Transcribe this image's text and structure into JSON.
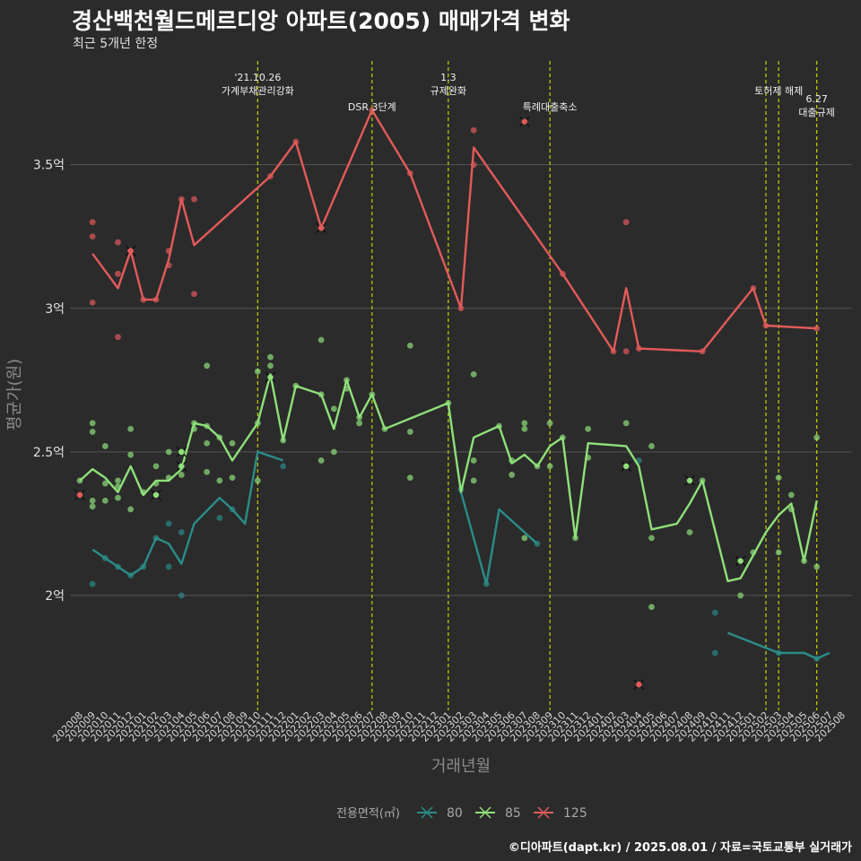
{
  "title": "경산백천월드메르디앙 아파트(2005) 매매가격 변화",
  "subtitle": "최근 5개년 한정",
  "credit": "©디아파트(dapt.kr) / 2025.08.01 / 자료=국토교통부 실거래가",
  "colors": {
    "background": "#2b2b2b",
    "grid": "#555555",
    "vline": "#c8d300",
    "s80": "#2a8c89",
    "s85": "#8fe07a",
    "s125": "#e35a5a"
  },
  "chart_data": {
    "type": "line",
    "title": "경산백천월드메르디앙 아파트(2005) 매매가격 변화",
    "subtitle": "최근 5개년 한정",
    "xlabel": "거래년월",
    "ylabel": "평균가(원)",
    "ylim": [
      1.6,
      3.88
    ],
    "yticks": [
      {
        "value": 2.0,
        "label": "2억"
      },
      {
        "value": 2.5,
        "label": "2.5억"
      },
      {
        "value": 3.0,
        "label": "3억"
      },
      {
        "value": 3.5,
        "label": "3.5억"
      }
    ],
    "categories": [
      "202008",
      "202009",
      "202010",
      "202011",
      "202012",
      "202101",
      "202102",
      "202103",
      "202104",
      "202105",
      "202106",
      "202107",
      "202108",
      "202109",
      "202110",
      "202111",
      "202112",
      "202201",
      "202202",
      "202203",
      "202204",
      "202205",
      "202206",
      "202207",
      "202208",
      "202209",
      "202210",
      "202211",
      "202212",
      "202301",
      "202302",
      "202303",
      "202304",
      "202305",
      "202306",
      "202307",
      "202308",
      "202309",
      "202310",
      "202311",
      "202312",
      "202401",
      "202402",
      "202403",
      "202404",
      "202405",
      "202406",
      "202407",
      "202408",
      "202409",
      "202410",
      "202411",
      "202412",
      "202501",
      "202502",
      "202503",
      "202504",
      "202505",
      "202506",
      "202507",
      "202508"
    ],
    "legend": {
      "title": "전용면적(㎡)",
      "position": "bottom",
      "items": [
        "80",
        "85",
        "125"
      ]
    },
    "series": [
      {
        "name": "80",
        "line": [
          [
            "202009",
            2.16
          ],
          [
            "202010",
            2.13
          ],
          [
            "202011",
            2.1
          ],
          [
            "202012",
            2.07
          ],
          [
            "202101",
            2.1
          ],
          [
            "202102",
            2.2
          ],
          [
            "202103",
            2.18
          ],
          [
            "202104",
            2.11
          ],
          [
            "202105",
            2.25
          ],
          [
            "202107",
            2.34
          ],
          [
            "202108",
            2.3
          ],
          [
            "202109",
            2.25
          ],
          [
            "202110",
            2.5
          ],
          [
            "202112",
            2.47
          ],
          [
            "202302",
            2.36
          ],
          [
            "202304",
            2.04
          ],
          [
            "202305",
            2.3
          ],
          [
            "202307",
            2.22
          ],
          [
            "202308",
            2.18
          ],
          [
            "202411",
            1.87
          ],
          [
            "202503",
            1.8
          ],
          [
            "202505",
            1.8
          ],
          [
            "202506",
            1.78
          ],
          [
            "202507",
            1.8
          ]
        ],
        "points": [
          [
            "202009",
            2.04
          ],
          [
            "202010",
            2.13
          ],
          [
            "202011",
            2.1
          ],
          [
            "202012",
            2.07
          ],
          [
            "202101",
            2.1
          ],
          [
            "202102",
            2.2
          ],
          [
            "202103",
            2.25
          ],
          [
            "202103",
            2.1
          ],
          [
            "202104",
            2.22
          ],
          [
            "202104",
            2.0
          ],
          [
            "202107",
            2.27
          ],
          [
            "202108",
            2.3
          ],
          [
            "202112",
            2.45
          ],
          [
            "202302",
            2.37
          ],
          [
            "202304",
            2.04
          ],
          [
            "202308",
            2.18
          ],
          [
            "202404",
            2.47
          ],
          [
            "202410",
            1.94
          ],
          [
            "202410",
            1.8
          ],
          [
            "202503",
            1.8
          ],
          [
            "202506",
            1.78
          ]
        ],
        "cancelled": []
      },
      {
        "name": "85",
        "line": [
          [
            "202008",
            2.4
          ],
          [
            "202009",
            2.44
          ],
          [
            "202010",
            2.41
          ],
          [
            "202011",
            2.36
          ],
          [
            "202012",
            2.45
          ],
          [
            "202101",
            2.35
          ],
          [
            "202102",
            2.4
          ],
          [
            "202103",
            2.4
          ],
          [
            "202104",
            2.44
          ],
          [
            "202105",
            2.6
          ],
          [
            "202106",
            2.59
          ],
          [
            "202107",
            2.55
          ],
          [
            "202108",
            2.47
          ],
          [
            "202110",
            2.6
          ],
          [
            "202111",
            2.77
          ],
          [
            "202112",
            2.54
          ],
          [
            "202201",
            2.73
          ],
          [
            "202203",
            2.7
          ],
          [
            "202204",
            2.58
          ],
          [
            "202205",
            2.75
          ],
          [
            "202206",
            2.62
          ],
          [
            "202207",
            2.7
          ],
          [
            "202208",
            2.58
          ],
          [
            "202301",
            2.67
          ],
          [
            "202302",
            2.36
          ],
          [
            "202303",
            2.55
          ],
          [
            "202305",
            2.59
          ],
          [
            "202306",
            2.46
          ],
          [
            "202307",
            2.49
          ],
          [
            "202308",
            2.45
          ],
          [
            "202309",
            2.52
          ],
          [
            "202310",
            2.55
          ],
          [
            "202311",
            2.2
          ],
          [
            "202312",
            2.53
          ],
          [
            "202403",
            2.52
          ],
          [
            "202404",
            2.45
          ],
          [
            "202405",
            2.23
          ],
          [
            "202407",
            2.25
          ],
          [
            "202408",
            2.32
          ],
          [
            "202409",
            2.4
          ],
          [
            "202411",
            2.05
          ],
          [
            "202412",
            2.06
          ],
          [
            "202502",
            2.22
          ],
          [
            "202503",
            2.28
          ],
          [
            "202504",
            2.32
          ],
          [
            "202505",
            2.12
          ],
          [
            "202506",
            2.33
          ]
        ],
        "points": [
          [
            "202008",
            2.4
          ],
          [
            "202009",
            2.6
          ],
          [
            "202009",
            2.57
          ],
          [
            "202009",
            2.33
          ],
          [
            "202009",
            2.31
          ],
          [
            "202010",
            2.52
          ],
          [
            "202010",
            2.39
          ],
          [
            "202010",
            2.33
          ],
          [
            "202011",
            2.4
          ],
          [
            "202011",
            2.38
          ],
          [
            "202011",
            2.34
          ],
          [
            "202012",
            2.58
          ],
          [
            "202012",
            2.49
          ],
          [
            "202012",
            2.3
          ],
          [
            "202101",
            2.36
          ],
          [
            "202102",
            2.45
          ],
          [
            "202102",
            2.39
          ],
          [
            "202103",
            2.5
          ],
          [
            "202103",
            2.41
          ],
          [
            "202104",
            2.5
          ],
          [
            "202104",
            2.45
          ],
          [
            "202104",
            2.42
          ],
          [
            "202105",
            2.6
          ],
          [
            "202105",
            2.58
          ],
          [
            "202106",
            2.8
          ],
          [
            "202106",
            2.59
          ],
          [
            "202106",
            2.53
          ],
          [
            "202106",
            2.43
          ],
          [
            "202107",
            2.55
          ],
          [
            "202107",
            2.4
          ],
          [
            "202108",
            2.53
          ],
          [
            "202108",
            2.41
          ],
          [
            "202110",
            2.78
          ],
          [
            "202110",
            2.6
          ],
          [
            "202110",
            2.4
          ],
          [
            "202111",
            2.83
          ],
          [
            "202111",
            2.8
          ],
          [
            "202112",
            2.54
          ],
          [
            "202201",
            2.73
          ],
          [
            "202203",
            2.89
          ],
          [
            "202203",
            2.7
          ],
          [
            "202203",
            2.47
          ],
          [
            "202204",
            2.65
          ],
          [
            "202204",
            2.5
          ],
          [
            "202205",
            2.75
          ],
          [
            "202205",
            2.72
          ],
          [
            "202206",
            2.62
          ],
          [
            "202206",
            2.6
          ],
          [
            "202207",
            2.7
          ],
          [
            "202208",
            2.58
          ],
          [
            "202210",
            2.87
          ],
          [
            "202210",
            2.57
          ],
          [
            "202210",
            2.41
          ],
          [
            "202301",
            2.67
          ],
          [
            "202303",
            2.77
          ],
          [
            "202303",
            2.47
          ],
          [
            "202303",
            2.4
          ],
          [
            "202305",
            2.59
          ],
          [
            "202306",
            2.47
          ],
          [
            "202306",
            2.42
          ],
          [
            "202307",
            2.6
          ],
          [
            "202307",
            2.58
          ],
          [
            "202307",
            2.2
          ],
          [
            "202308",
            2.45
          ],
          [
            "202309",
            2.6
          ],
          [
            "202309",
            2.45
          ],
          [
            "202310",
            2.55
          ],
          [
            "202311",
            2.2
          ],
          [
            "202312",
            2.58
          ],
          [
            "202312",
            2.48
          ],
          [
            "202403",
            2.6
          ],
          [
            "202405",
            2.52
          ],
          [
            "202405",
            2.2
          ],
          [
            "202405",
            1.96
          ],
          [
            "202408",
            2.22
          ],
          [
            "202409",
            2.4
          ],
          [
            "202412",
            2.0
          ],
          [
            "202501",
            2.15
          ],
          [
            "202503",
            2.41
          ],
          [
            "202503",
            2.15
          ],
          [
            "202504",
            2.35
          ],
          [
            "202504",
            2.3
          ],
          [
            "202505",
            2.12
          ],
          [
            "202506",
            2.55
          ],
          [
            "202506",
            2.1
          ]
        ],
        "cancelled": [
          [
            "202104",
            2.5
          ],
          [
            "202104",
            2.45
          ],
          [
            "202102",
            2.35
          ],
          [
            "202111",
            2.76
          ],
          [
            "202403",
            2.45
          ],
          [
            "202408",
            2.4
          ],
          [
            "202412",
            2.12
          ]
        ]
      },
      {
        "name": "125",
        "line": [
          [
            "202009",
            3.19
          ],
          [
            "202011",
            3.07
          ],
          [
            "202012",
            3.2
          ],
          [
            "202101",
            3.03
          ],
          [
            "202102",
            3.03
          ],
          [
            "202103",
            3.17
          ],
          [
            "202104",
            3.38
          ],
          [
            "202105",
            3.22
          ],
          [
            "202111",
            3.46
          ],
          [
            "202201",
            3.58
          ],
          [
            "202203",
            3.28
          ],
          [
            "202207",
            3.69
          ],
          [
            "202210",
            3.47
          ],
          [
            "202302",
            3.0
          ],
          [
            "202303",
            3.56
          ],
          [
            "202310",
            3.12
          ],
          [
            "202402",
            2.85
          ],
          [
            "202403",
            3.07
          ],
          [
            "202404",
            2.86
          ],
          [
            "202409",
            2.85
          ],
          [
            "202501",
            3.07
          ],
          [
            "202502",
            2.94
          ],
          [
            "202506",
            2.93
          ]
        ],
        "points": [
          [
            "202009",
            3.3
          ],
          [
            "202009",
            3.25
          ],
          [
            "202009",
            3.02
          ],
          [
            "202011",
            3.23
          ],
          [
            "202011",
            3.12
          ],
          [
            "202011",
            2.9
          ],
          [
            "202012",
            3.2
          ],
          [
            "202101",
            3.03
          ],
          [
            "202102",
            3.03
          ],
          [
            "202103",
            3.2
          ],
          [
            "202103",
            3.15
          ],
          [
            "202104",
            3.38
          ],
          [
            "202105",
            3.38
          ],
          [
            "202105",
            3.05
          ],
          [
            "202111",
            3.46
          ],
          [
            "202201",
            3.58
          ],
          [
            "202203",
            3.28
          ],
          [
            "202207",
            3.69
          ],
          [
            "202210",
            3.47
          ],
          [
            "202302",
            3.0
          ],
          [
            "202303",
            3.62
          ],
          [
            "202303",
            3.5
          ],
          [
            "202310",
            3.12
          ],
          [
            "202402",
            2.85
          ],
          [
            "202403",
            3.3
          ],
          [
            "202403",
            2.85
          ],
          [
            "202404",
            2.86
          ],
          [
            "202409",
            2.85
          ],
          [
            "202501",
            3.07
          ],
          [
            "202502",
            2.94
          ],
          [
            "202506",
            2.93
          ]
        ],
        "cancelled": [
          [
            "202008",
            2.35
          ],
          [
            "202012",
            3.2
          ],
          [
            "202203",
            3.28
          ],
          [
            "202307",
            3.65
          ],
          [
            "202404",
            1.69
          ]
        ]
      }
    ],
    "events": [
      {
        "x": "202110",
        "lines": [
          "'21.10.26",
          "가계부채관리강화"
        ],
        "level": 0
      },
      {
        "x": "202207",
        "lines": [
          "DSR 3단계"
        ],
        "level": 2
      },
      {
        "x": "202301",
        "lines": [
          "1.3",
          "규제완화"
        ],
        "level": 0
      },
      {
        "x": "202309",
        "lines": [
          "특례대출축소"
        ],
        "level": 2
      },
      {
        "x": "202502",
        "lines": [],
        "level": 0
      },
      {
        "x": "202503",
        "lines": [
          "토허제 해제"
        ],
        "level": 1
      },
      {
        "x": "202506",
        "lines": [
          "6.27",
          "대출규제"
        ],
        "level": 3
      }
    ]
  }
}
